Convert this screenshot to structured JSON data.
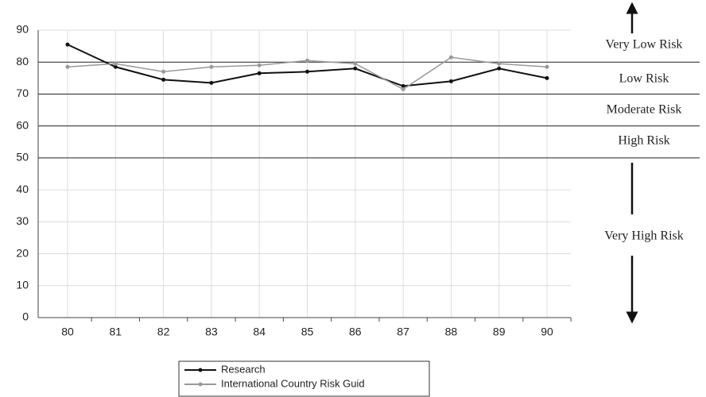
{
  "chart_data": {
    "type": "line",
    "categories": [
      "80",
      "81",
      "82",
      "83",
      "84",
      "85",
      "86",
      "87",
      "88",
      "89",
      "90"
    ],
    "series": [
      {
        "name": "Research",
        "color": "#111111",
        "values": [
          85.5,
          78.5,
          74.5,
          73.5,
          76.5,
          77,
          78,
          72.5,
          74,
          78,
          75
        ]
      },
      {
        "name": "International Country Risk Guid",
        "color": "#999999",
        "values": [
          78.5,
          79.5,
          77,
          78.5,
          79,
          80.5,
          79.5,
          71.5,
          81.5,
          79.5,
          78.5
        ]
      }
    ],
    "ylim": [
      0,
      90
    ],
    "yticks": [
      0,
      10,
      20,
      30,
      40,
      50,
      60,
      70,
      80,
      90
    ],
    "grid": true,
    "risk_zones": [
      "Very Low Risk",
      "Low Risk",
      "Moderate Risk",
      "High Risk",
      "Very High Risk"
    ]
  }
}
